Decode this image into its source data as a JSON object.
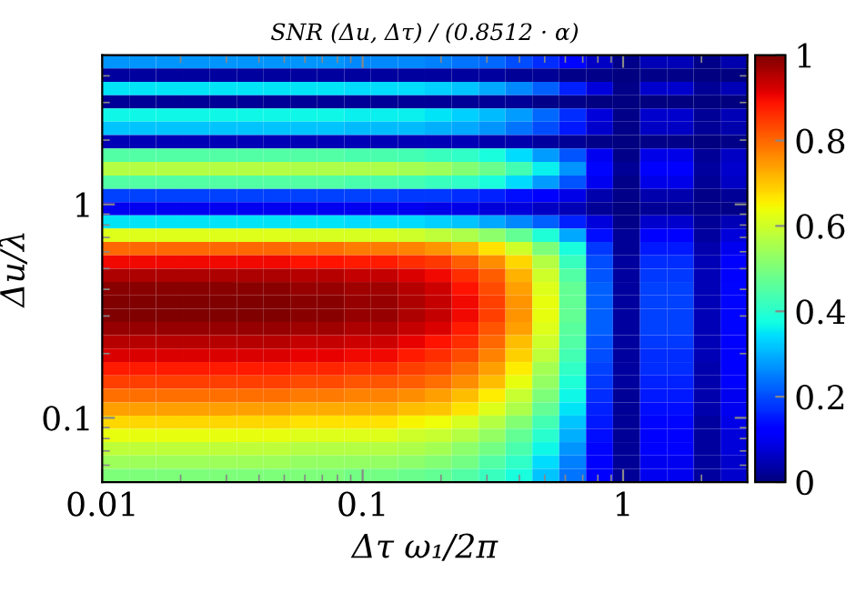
{
  "chart_data": {
    "type": "heatmap",
    "title": "SNR (Δu, Δτ) / (0.8512 · α)",
    "xlabel": "Δτ ω₁/2π",
    "ylabel": "Δu/λ",
    "log": "xy",
    "xlim": [
      0.01,
      3
    ],
    "xticks": [
      0.01,
      0.1,
      1
    ],
    "ylim": [
      0.05,
      5
    ],
    "yticks": [
      0.1,
      1
    ],
    "clim": [
      0,
      1
    ],
    "cticks": [
      0,
      0.2,
      0.4,
      0.6,
      0.8,
      1
    ],
    "x": [
      0.0113,
      0.0143,
      0.0181,
      0.023,
      0.0292,
      0.037,
      0.0469,
      0.0594,
      0.0754,
      0.0957,
      0.121,
      0.154,
      0.195,
      0.248,
      0.314,
      0.398,
      0.505,
      0.64,
      0.812,
      1.03,
      1.31,
      1.66,
      2.1,
      2.67
    ],
    "y": [
      4.65,
      4.03,
      3.49,
      3.02,
      2.62,
      2.27,
      1.96,
      1.7,
      1.47,
      1.27,
      1.1,
      0.955,
      0.828,
      0.716,
      0.621,
      0.537,
      0.465,
      0.403,
      0.349,
      0.302,
      0.262,
      0.227,
      0.196,
      0.17,
      0.147,
      0.127,
      0.11,
      0.0955,
      0.0828,
      0.0716,
      0.0621,
      0.0537
    ],
    "cells": [
      [
        0.27,
        0.27,
        0.27,
        0.27,
        0.27,
        0.27,
        0.27,
        0.27,
        0.27,
        0.26,
        0.26,
        0.26,
        0.25,
        0.24,
        0.23,
        0.2,
        0.17,
        0.13,
        0.06,
        0.01,
        0.05,
        0.05,
        0.01,
        0.04
      ],
      [
        0.03,
        0.03,
        0.03,
        0.03,
        0.03,
        0.03,
        0.03,
        0.03,
        0.03,
        0.03,
        0.03,
        0.03,
        0.03,
        0.03,
        0.03,
        0.02,
        0.02,
        0.01,
        0.01,
        0.0,
        0.01,
        0.01,
        0.0,
        0.0
      ],
      [
        0.35,
        0.35,
        0.35,
        0.35,
        0.35,
        0.35,
        0.35,
        0.35,
        0.35,
        0.34,
        0.34,
        0.34,
        0.33,
        0.32,
        0.29,
        0.26,
        0.22,
        0.16,
        0.08,
        0.01,
        0.07,
        0.07,
        0.02,
        0.05
      ],
      [
        0.02,
        0.02,
        0.02,
        0.02,
        0.02,
        0.02,
        0.02,
        0.02,
        0.02,
        0.02,
        0.02,
        0.02,
        0.02,
        0.02,
        0.02,
        0.02,
        0.01,
        0.01,
        0.0,
        0.0,
        0.0,
        0.0,
        0.0,
        0.0
      ],
      [
        0.37,
        0.37,
        0.37,
        0.37,
        0.37,
        0.37,
        0.37,
        0.37,
        0.37,
        0.36,
        0.36,
        0.36,
        0.35,
        0.33,
        0.31,
        0.28,
        0.23,
        0.17,
        0.08,
        0.01,
        0.07,
        0.07,
        0.02,
        0.05
      ],
      [
        0.32,
        0.32,
        0.32,
        0.32,
        0.32,
        0.32,
        0.32,
        0.32,
        0.32,
        0.31,
        0.31,
        0.31,
        0.3,
        0.29,
        0.27,
        0.24,
        0.2,
        0.15,
        0.07,
        0.01,
        0.06,
        0.06,
        0.02,
        0.04
      ],
      [
        0.05,
        0.05,
        0.05,
        0.05,
        0.05,
        0.05,
        0.05,
        0.05,
        0.05,
        0.05,
        0.05,
        0.05,
        0.05,
        0.05,
        0.04,
        0.04,
        0.03,
        0.02,
        0.01,
        0.0,
        0.01,
        0.01,
        0.0,
        0.01
      ],
      [
        0.45,
        0.45,
        0.45,
        0.45,
        0.45,
        0.45,
        0.45,
        0.45,
        0.45,
        0.44,
        0.44,
        0.43,
        0.42,
        0.41,
        0.38,
        0.34,
        0.28,
        0.21,
        0.1,
        0.01,
        0.09,
        0.09,
        0.02,
        0.06
      ],
      [
        0.57,
        0.57,
        0.57,
        0.57,
        0.57,
        0.57,
        0.57,
        0.56,
        0.56,
        0.56,
        0.56,
        0.55,
        0.54,
        0.51,
        0.48,
        0.43,
        0.36,
        0.27,
        0.13,
        0.02,
        0.11,
        0.11,
        0.03,
        0.07
      ],
      [
        0.45,
        0.45,
        0.45,
        0.45,
        0.45,
        0.45,
        0.45,
        0.45,
        0.45,
        0.44,
        0.44,
        0.43,
        0.42,
        0.41,
        0.38,
        0.34,
        0.28,
        0.21,
        0.1,
        0.01,
        0.09,
        0.09,
        0.02,
        0.06
      ],
      [
        0.19,
        0.19,
        0.19,
        0.19,
        0.19,
        0.19,
        0.19,
        0.19,
        0.19,
        0.19,
        0.19,
        0.18,
        0.18,
        0.17,
        0.16,
        0.14,
        0.12,
        0.09,
        0.04,
        0.01,
        0.04,
        0.04,
        0.01,
        0.02
      ],
      [
        0.1,
        0.1,
        0.1,
        0.1,
        0.1,
        0.1,
        0.1,
        0.1,
        0.1,
        0.1,
        0.1,
        0.1,
        0.09,
        0.09,
        0.08,
        0.08,
        0.06,
        0.05,
        0.02,
        0.0,
        0.02,
        0.02,
        0.01,
        0.01
      ],
      [
        0.35,
        0.35,
        0.35,
        0.35,
        0.35,
        0.35,
        0.35,
        0.35,
        0.35,
        0.34,
        0.34,
        0.34,
        0.33,
        0.32,
        0.29,
        0.26,
        0.22,
        0.16,
        0.08,
        0.01,
        0.07,
        0.07,
        0.02,
        0.05
      ],
      [
        0.62,
        0.62,
        0.62,
        0.62,
        0.62,
        0.62,
        0.62,
        0.61,
        0.61,
        0.61,
        0.61,
        0.6,
        0.58,
        0.56,
        0.52,
        0.47,
        0.39,
        0.29,
        0.14,
        0.02,
        0.12,
        0.12,
        0.03,
        0.08
      ],
      [
        0.8,
        0.8,
        0.8,
        0.8,
        0.8,
        0.8,
        0.8,
        0.79,
        0.79,
        0.78,
        0.78,
        0.77,
        0.75,
        0.72,
        0.67,
        0.6,
        0.5,
        0.38,
        0.18,
        0.02,
        0.15,
        0.15,
        0.04,
        0.1
      ],
      [
        0.9,
        0.9,
        0.9,
        0.9,
        0.9,
        0.9,
        0.9,
        0.89,
        0.89,
        0.88,
        0.88,
        0.86,
        0.85,
        0.81,
        0.76,
        0.68,
        0.57,
        0.42,
        0.2,
        0.03,
        0.17,
        0.17,
        0.05,
        0.12
      ],
      [
        0.96,
        0.96,
        0.96,
        0.96,
        0.96,
        0.96,
        0.96,
        0.95,
        0.95,
        0.94,
        0.94,
        0.92,
        0.9,
        0.86,
        0.81,
        0.72,
        0.6,
        0.45,
        0.21,
        0.03,
        0.18,
        0.18,
        0.05,
        0.12
      ],
      [
        0.99,
        0.99,
        0.99,
        0.99,
        0.99,
        0.99,
        0.99,
        0.98,
        0.98,
        0.97,
        0.97,
        0.95,
        0.93,
        0.89,
        0.83,
        0.74,
        0.62,
        0.47,
        0.22,
        0.03,
        0.19,
        0.19,
        0.05,
        0.13
      ],
      [
        1.0,
        1.0,
        1.0,
        1.0,
        1.0,
        1.0,
        1.0,
        0.99,
        0.99,
        0.98,
        0.98,
        0.96,
        0.94,
        0.9,
        0.84,
        0.75,
        0.63,
        0.47,
        0.22,
        0.03,
        0.19,
        0.19,
        0.05,
        0.13
      ],
      [
        1.0,
        1.0,
        1.0,
        1.0,
        1.0,
        1.0,
        1.0,
        0.99,
        0.99,
        0.98,
        0.98,
        0.96,
        0.94,
        0.9,
        0.84,
        0.75,
        0.63,
        0.47,
        0.22,
        0.03,
        0.19,
        0.19,
        0.05,
        0.13
      ],
      [
        0.98,
        0.98,
        0.98,
        0.98,
        0.98,
        0.98,
        0.98,
        0.97,
        0.97,
        0.96,
        0.96,
        0.94,
        0.92,
        0.88,
        0.82,
        0.74,
        0.62,
        0.46,
        0.22,
        0.03,
        0.19,
        0.19,
        0.05,
        0.13
      ],
      [
        0.95,
        0.95,
        0.95,
        0.95,
        0.95,
        0.95,
        0.95,
        0.94,
        0.94,
        0.93,
        0.93,
        0.91,
        0.89,
        0.86,
        0.8,
        0.71,
        0.6,
        0.45,
        0.21,
        0.03,
        0.18,
        0.18,
        0.05,
        0.12
      ],
      [
        0.92,
        0.92,
        0.92,
        0.92,
        0.92,
        0.92,
        0.92,
        0.91,
        0.91,
        0.9,
        0.9,
        0.88,
        0.86,
        0.83,
        0.77,
        0.69,
        0.58,
        0.43,
        0.2,
        0.03,
        0.17,
        0.17,
        0.05,
        0.12
      ],
      [
        0.88,
        0.88,
        0.88,
        0.88,
        0.88,
        0.88,
        0.88,
        0.87,
        0.87,
        0.86,
        0.86,
        0.84,
        0.83,
        0.79,
        0.74,
        0.66,
        0.55,
        0.41,
        0.19,
        0.03,
        0.17,
        0.17,
        0.04,
        0.11
      ],
      [
        0.84,
        0.84,
        0.84,
        0.84,
        0.84,
        0.84,
        0.84,
        0.83,
        0.83,
        0.82,
        0.82,
        0.81,
        0.79,
        0.76,
        0.71,
        0.63,
        0.53,
        0.39,
        0.18,
        0.03,
        0.16,
        0.16,
        0.04,
        0.11
      ],
      [
        0.79,
        0.79,
        0.79,
        0.79,
        0.79,
        0.79,
        0.79,
        0.78,
        0.78,
        0.77,
        0.77,
        0.76,
        0.74,
        0.71,
        0.66,
        0.59,
        0.5,
        0.37,
        0.17,
        0.02,
        0.15,
        0.15,
        0.04,
        0.1
      ],
      [
        0.74,
        0.74,
        0.74,
        0.74,
        0.74,
        0.74,
        0.74,
        0.73,
        0.73,
        0.73,
        0.73,
        0.71,
        0.7,
        0.67,
        0.62,
        0.56,
        0.47,
        0.35,
        0.16,
        0.02,
        0.14,
        0.14,
        0.04,
        0.1
      ],
      [
        0.68,
        0.68,
        0.68,
        0.68,
        0.68,
        0.68,
        0.68,
        0.67,
        0.67,
        0.67,
        0.67,
        0.65,
        0.64,
        0.61,
        0.57,
        0.51,
        0.43,
        0.32,
        0.15,
        0.02,
        0.13,
        0.13,
        0.03,
        0.09
      ],
      [
        0.63,
        0.63,
        0.63,
        0.63,
        0.63,
        0.63,
        0.63,
        0.62,
        0.62,
        0.62,
        0.62,
        0.6,
        0.59,
        0.57,
        0.53,
        0.47,
        0.4,
        0.3,
        0.14,
        0.02,
        0.12,
        0.12,
        0.03,
        0.08
      ],
      [
        0.58,
        0.58,
        0.58,
        0.58,
        0.58,
        0.58,
        0.58,
        0.57,
        0.57,
        0.57,
        0.57,
        0.56,
        0.55,
        0.52,
        0.49,
        0.44,
        0.37,
        0.27,
        0.13,
        0.02,
        0.11,
        0.11,
        0.03,
        0.08
      ],
      [
        0.54,
        0.54,
        0.54,
        0.54,
        0.54,
        0.54,
        0.54,
        0.53,
        0.53,
        0.53,
        0.53,
        0.52,
        0.51,
        0.49,
        0.45,
        0.41,
        0.34,
        0.25,
        0.12,
        0.02,
        0.1,
        0.1,
        0.03,
        0.07
      ],
      [
        0.5,
        0.5,
        0.5,
        0.5,
        0.5,
        0.5,
        0.5,
        0.5,
        0.5,
        0.49,
        0.49,
        0.48,
        0.47,
        0.45,
        0.42,
        0.38,
        0.32,
        0.24,
        0.11,
        0.02,
        0.1,
        0.1,
        0.03,
        0.07
      ]
    ]
  }
}
